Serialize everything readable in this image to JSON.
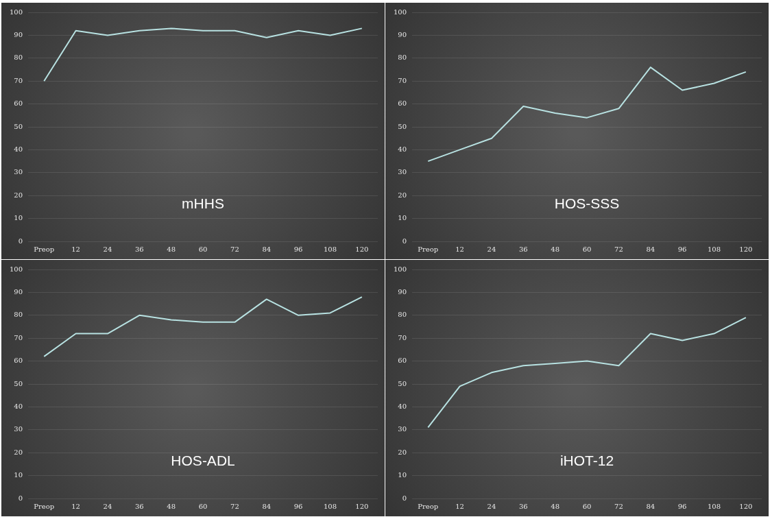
{
  "chart_data": [
    {
      "type": "line",
      "title": "mHHS",
      "categories": [
        "Preop",
        "12",
        "24",
        "36",
        "48",
        "60",
        "72",
        "84",
        "96",
        "108",
        "120"
      ],
      "values": [
        70,
        92,
        90,
        92,
        93,
        92,
        92,
        89,
        92,
        90,
        93
      ],
      "color": "#b8e2e2",
      "ylim": [
        0,
        100
      ],
      "yticks": [
        0,
        10,
        20,
        30,
        40,
        50,
        60,
        70,
        80,
        90,
        100
      ],
      "grid": "y",
      "marker": "none"
    },
    {
      "type": "line",
      "title": "HOS-SSS",
      "categories": [
        "Preop",
        "12",
        "24",
        "36",
        "48",
        "60",
        "72",
        "84",
        "96",
        "108",
        "120"
      ],
      "values": [
        35,
        40,
        45,
        59,
        56,
        54,
        58,
        76,
        66,
        69,
        74
      ],
      "color": "#b8e2e2",
      "ylim": [
        0,
        100
      ],
      "yticks": [
        0,
        10,
        20,
        30,
        40,
        50,
        60,
        70,
        80,
        90,
        100
      ],
      "grid": "y",
      "marker": "none"
    },
    {
      "type": "line",
      "title": "HOS-ADL",
      "categories": [
        "Preop",
        "12",
        "24",
        "36",
        "48",
        "60",
        "72",
        "84",
        "96",
        "108",
        "120"
      ],
      "values": [
        62,
        72,
        72,
        80,
        78,
        77,
        77,
        87,
        80,
        81,
        88
      ],
      "color": "#b8e2e2",
      "ylim": [
        0,
        100
      ],
      "yticks": [
        0,
        10,
        20,
        30,
        40,
        50,
        60,
        70,
        80,
        90,
        100
      ],
      "grid": "y",
      "marker": "none"
    },
    {
      "type": "line",
      "title": "iHOT-12",
      "categories": [
        "Preop",
        "12",
        "24",
        "36",
        "48",
        "60",
        "72",
        "84",
        "96",
        "108",
        "120"
      ],
      "values": [
        31,
        49,
        55,
        58,
        59,
        60,
        58,
        72,
        69,
        72,
        79
      ],
      "color": "#b8e2e2",
      "ylim": [
        0,
        100
      ],
      "yticks": [
        0,
        10,
        20,
        30,
        40,
        50,
        60,
        70,
        80,
        90,
        100
      ],
      "grid": "y",
      "marker": "none"
    }
  ]
}
